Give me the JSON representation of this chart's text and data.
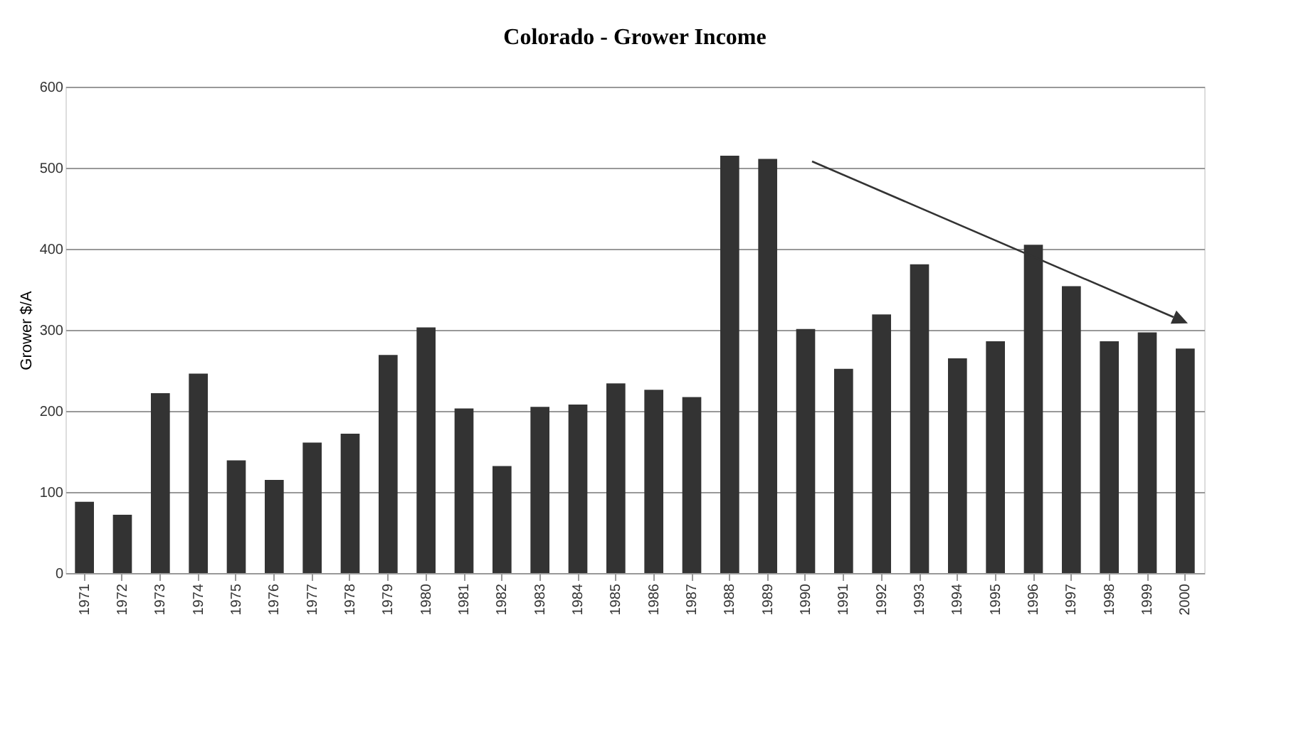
{
  "chart_data": {
    "type": "bar",
    "title": "Colorado - Grower Income",
    "ylabel": "Grower $/A",
    "categories": [
      "1971",
      "1972",
      "1973",
      "1974",
      "1975",
      "1976",
      "1977",
      "1978",
      "1979",
      "1980",
      "1981",
      "1982",
      "1983",
      "1984",
      "1985",
      "1986",
      "1987",
      "1988",
      "1989",
      "1990",
      "1991",
      "1992",
      "1993",
      "1994",
      "1995",
      "1996",
      "1997",
      "1998",
      "1999",
      "2000"
    ],
    "series": [
      {
        "color": "#333333",
        "values": [
          88,
          72,
          222,
          246,
          139,
          115,
          161,
          172,
          269,
          303,
          203,
          132,
          205,
          208,
          234,
          226,
          217,
          515,
          511,
          301,
          252,
          319,
          381,
          265,
          286,
          405,
          354,
          286,
          297,
          277
        ]
      }
    ],
    "ylim": [
      0,
      600
    ],
    "yticks": [
      0,
      100,
      200,
      300,
      400,
      500,
      600
    ],
    "grid": "y"
  }
}
